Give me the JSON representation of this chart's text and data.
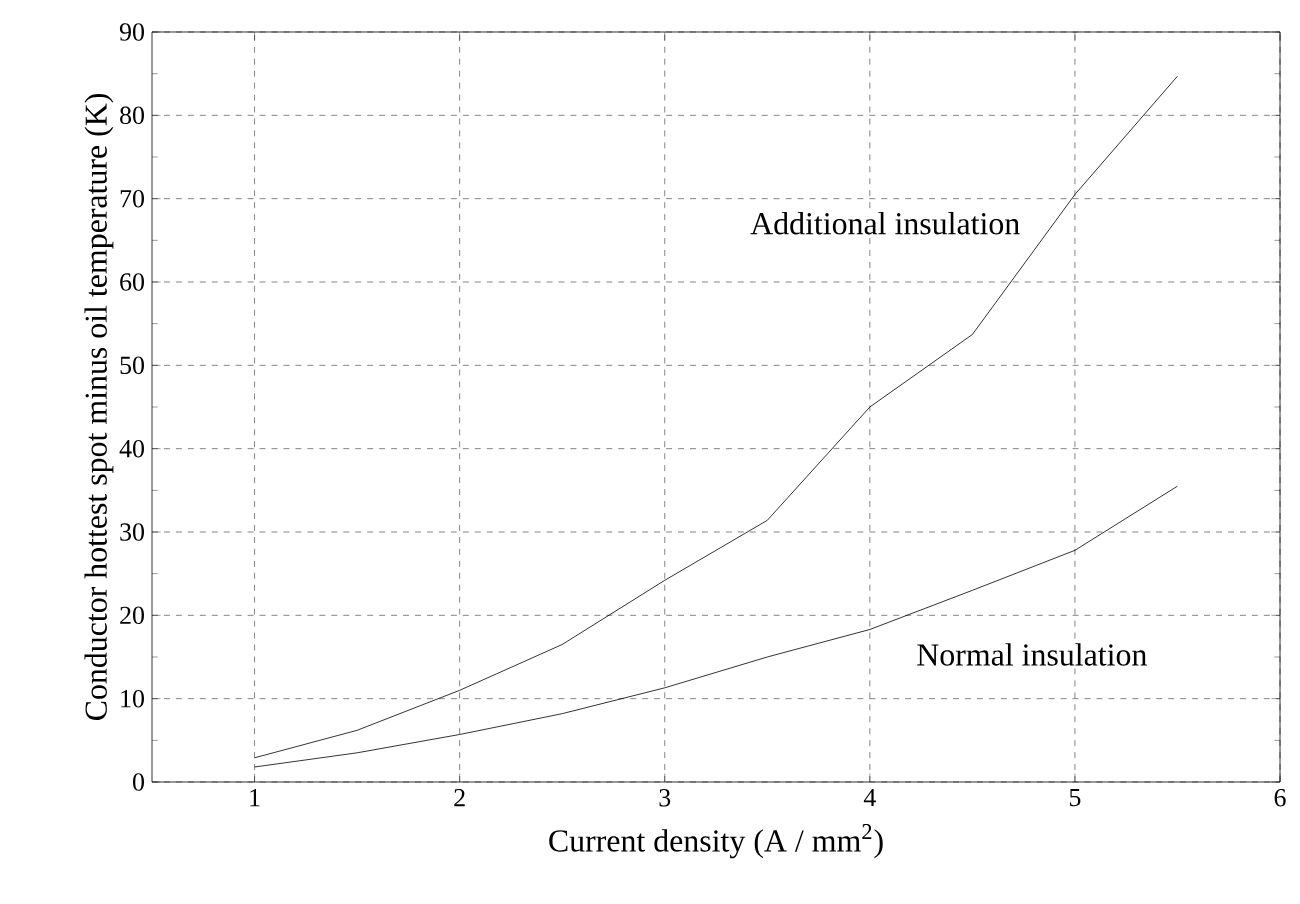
{
  "chart_data": {
    "type": "line",
    "xlabel": "Current density (A / mm$^{2}$)",
    "ylabel": "Conductor hottest spot minus oil temperature (K)",
    "xlim": [
      0.5,
      6
    ],
    "xticks": [
      1,
      2,
      3,
      4,
      5,
      6
    ],
    "ylim": [
      0,
      90
    ],
    "yticks": [
      0,
      10,
      20,
      30,
      40,
      50,
      60,
      70,
      80,
      90
    ],
    "grid": true,
    "marker": "none",
    "line_style": "solid",
    "series": [
      {
        "color": "#000000",
        "x": [
          1,
          1.5,
          2,
          2.5,
          3,
          3.5,
          4,
          4.5,
          5,
          5.5
        ],
        "values": [
          2.9,
          6.2,
          11,
          16.5,
          24.2,
          31.4,
          45,
          53.7,
          70.5,
          84.7
        ]
      },
      {
        "color": "#000000",
        "x": [
          1,
          1.5,
          2,
          2.5,
          3,
          3.5,
          4,
          4.5,
          5,
          5.5
        ],
        "values": [
          1.8,
          3.5,
          5.7,
          8.2,
          11.3,
          15,
          18.3,
          23,
          27.8,
          35.5
        ]
      }
    ],
    "annotations": [
      "Additional insulation",
      "Normal insulation"
    ]
  }
}
